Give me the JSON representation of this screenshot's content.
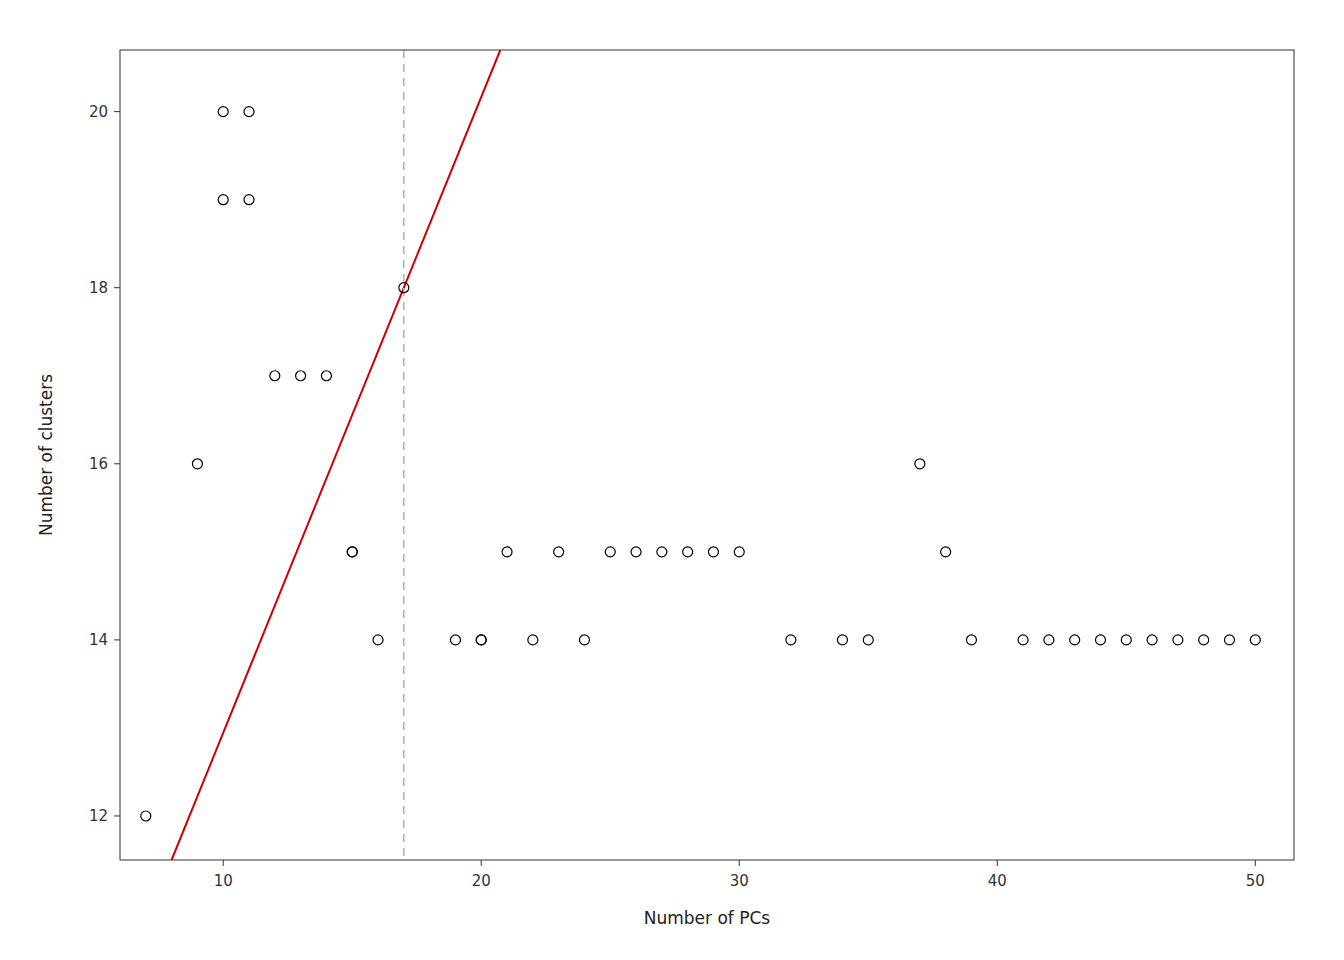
{
  "chart_data": {
    "type": "scatter",
    "xlabel": "Number of PCs",
    "ylabel": "Number of clusters",
    "xlim": [
      6.0,
      51.5
    ],
    "ylim": [
      11.5,
      20.7
    ],
    "xticks": [
      10,
      20,
      30,
      40,
      50
    ],
    "yticks": [
      12,
      14,
      16,
      18,
      20
    ],
    "grid": false,
    "series": [
      {
        "type": "scatter",
        "color": "#000000",
        "marker": "open-circle",
        "x": [
          7,
          9,
          10,
          10,
          11,
          11,
          12,
          13,
          14,
          15,
          15,
          16,
          17,
          19,
          20,
          20,
          21,
          22,
          23,
          24,
          25,
          26,
          27,
          28,
          29,
          30,
          32,
          34,
          35,
          37,
          38,
          39,
          41,
          42,
          43,
          44,
          45,
          46,
          47,
          48,
          49,
          50
        ],
        "values": [
          12,
          16,
          20,
          19,
          20,
          19,
          17,
          17,
          17,
          15,
          15,
          14,
          18,
          14,
          14,
          14,
          15,
          14,
          15,
          14,
          15,
          15,
          15,
          15,
          15,
          15,
          14,
          14,
          14,
          16,
          15,
          14,
          14,
          14,
          14,
          14,
          14,
          14,
          14,
          14,
          14,
          14
        ]
      },
      {
        "type": "line",
        "color": "#cc0000",
        "line_style": "solid",
        "x": [
          8,
          20.73846153846154
        ],
        "values": [
          11.5,
          20.7
        ]
      },
      {
        "type": "vline",
        "color": "#b0b0b0",
        "line_style": "dashed",
        "x": [
          17
        ]
      }
    ]
  }
}
